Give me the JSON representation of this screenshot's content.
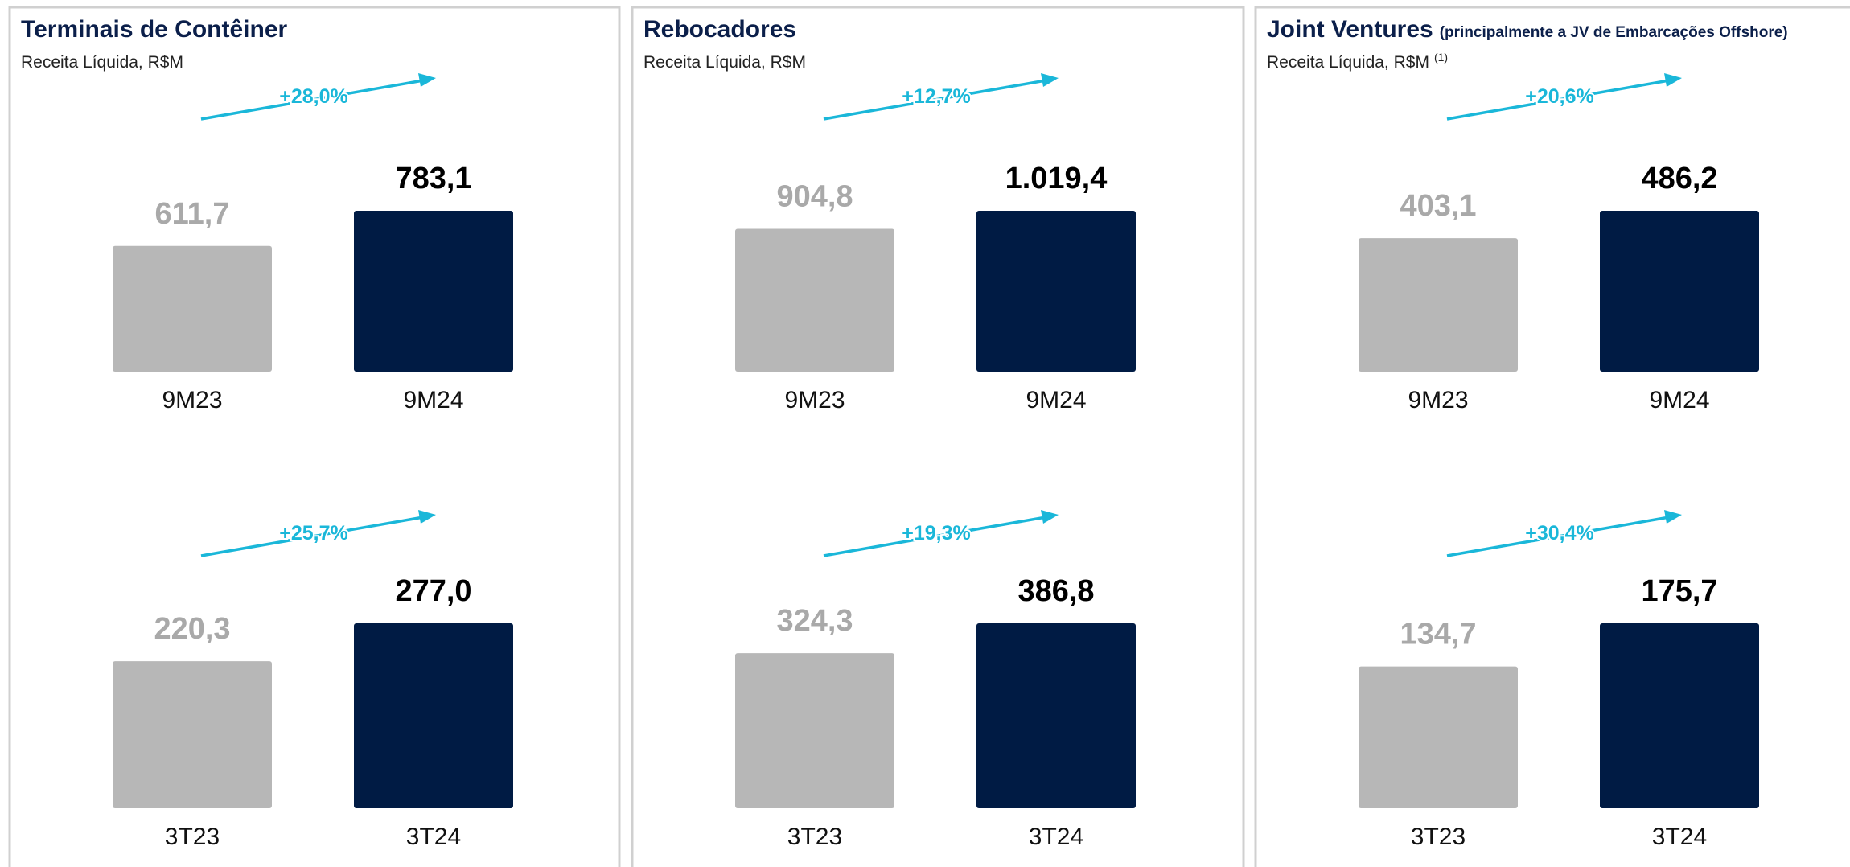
{
  "chart_data": [
    {
      "type": "bar",
      "title": "Terminais de Contêiner",
      "subtitle": "Receita Líquida, R$M",
      "categories": [
        "9M23",
        "9M24"
      ],
      "values": [
        611.7,
        783.1
      ],
      "value_labels": [
        "611,7",
        "783,1"
      ],
      "colors": [
        "#b7b7b7",
        "#001b44"
      ],
      "annotation": "+28,0%"
    },
    {
      "type": "bar",
      "categories": [
        "3T23",
        "3T24"
      ],
      "values": [
        220.3,
        277.0
      ],
      "value_labels": [
        "220,3",
        "277,0"
      ],
      "colors": [
        "#b7b7b7",
        "#001b44"
      ],
      "annotation": "+25,7%"
    },
    {
      "type": "bar",
      "title": "Rebocadores",
      "subtitle": "Receita Líquida, R$M",
      "categories": [
        "9M23",
        "9M24"
      ],
      "values": [
        904.8,
        1019.4
      ],
      "value_labels": [
        "904,8",
        "1.019,4"
      ],
      "colors": [
        "#b7b7b7",
        "#001b44"
      ],
      "annotation": "+12,7%"
    },
    {
      "type": "bar",
      "categories": [
        "3T23",
        "3T24"
      ],
      "values": [
        324.3,
        386.8
      ],
      "value_labels": [
        "324,3",
        "386,8"
      ],
      "colors": [
        "#b7b7b7",
        "#001b44"
      ],
      "annotation": "+19,3%"
    },
    {
      "type": "bar",
      "title": "Joint Ventures",
      "title_note": "(principalmente a JV de Embarcações Offshore)",
      "subtitle": "Receita Líquida, R$M",
      "subtitle_note": "(1)",
      "categories": [
        "9M23",
        "9M24"
      ],
      "values": [
        403.1,
        486.2
      ],
      "value_labels": [
        "403,1",
        "486,2"
      ],
      "colors": [
        "#b7b7b7",
        "#001b44"
      ],
      "annotation": "+20,6%"
    },
    {
      "type": "bar",
      "categories": [
        "3T23",
        "3T24"
      ],
      "values": [
        134.7,
        175.7
      ],
      "value_labels": [
        "134,7",
        "175,7"
      ],
      "colors": [
        "#b7b7b7",
        "#001b44"
      ],
      "annotation": "+30,4%"
    }
  ]
}
